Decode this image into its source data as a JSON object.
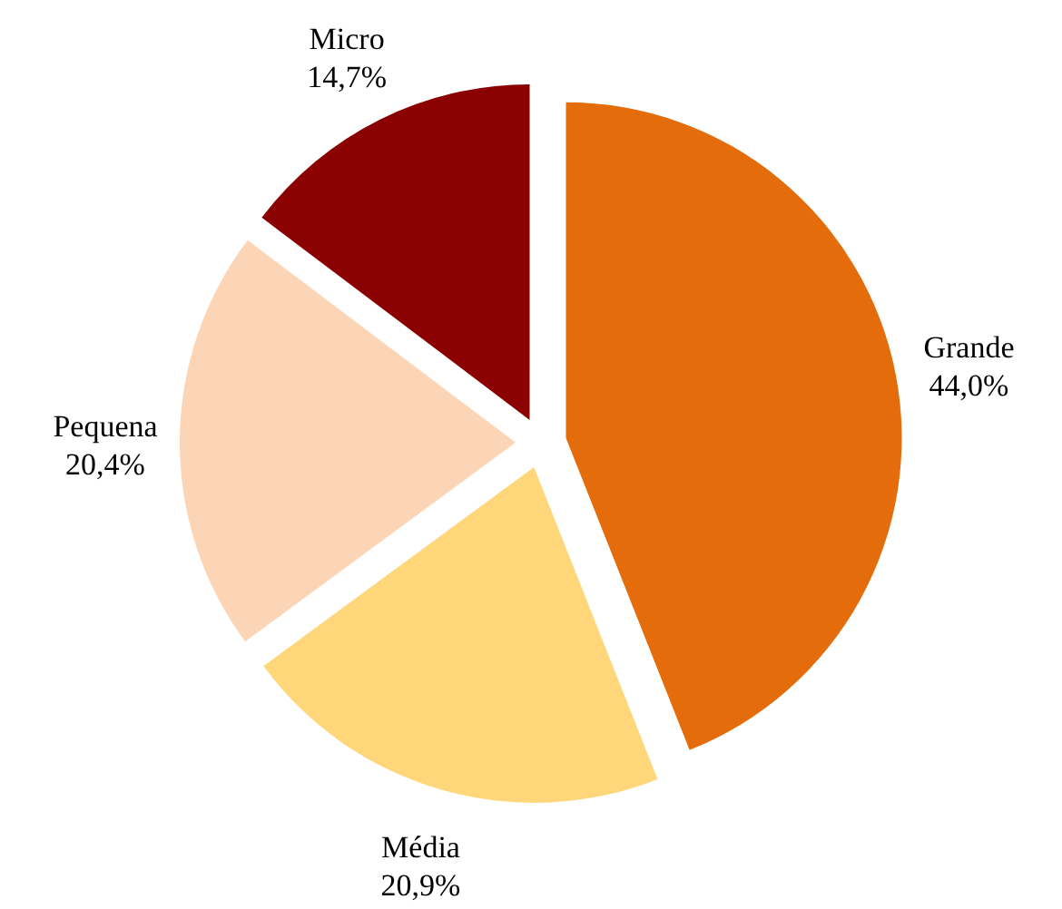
{
  "chart_data": {
    "type": "pie",
    "categories": [
      "Grande",
      "Média",
      "Pequena",
      "Micro"
    ],
    "values": [
      44.0,
      20.9,
      20.4,
      14.7
    ],
    "colors": [
      "#e46c0a",
      "#ffd679",
      "#fbd5b6",
      "#8b0000"
    ],
    "value_labels": [
      "44,0%",
      "20,9%",
      "20,4%",
      "14,7%"
    ]
  }
}
